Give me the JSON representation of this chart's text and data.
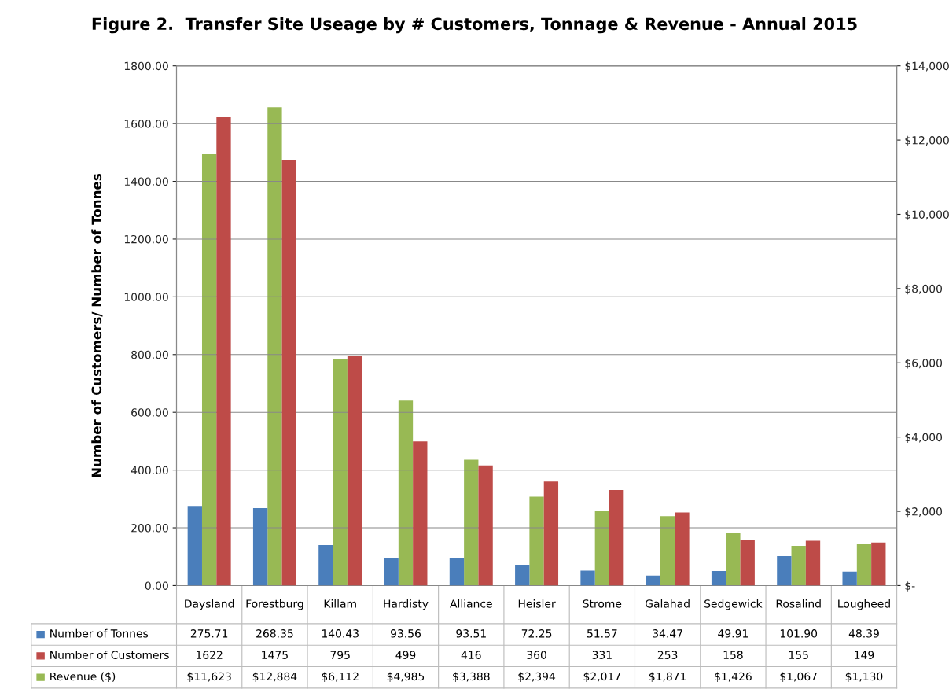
{
  "chart_data": {
    "type": "bar",
    "title": "Figure 2.  Transfer Site Useage by # Customers, Tonnage & Revenue - Annual 2015",
    "ylabel": "Number of Customers/ Number of Tonnes",
    "categories": [
      "Daysland",
      "Forestburg",
      "Killam",
      "Hardisty",
      "Alliance",
      "Heisler",
      "Strome",
      "Galahad",
      "Sedgewick",
      "Rosalind",
      "Lougheed"
    ],
    "series": [
      {
        "name": "Number of Tonnes",
        "color": "#4a7ebb",
        "values": [
          275.71,
          268.35,
          140.43,
          93.56,
          93.51,
          72.25,
          51.57,
          34.47,
          49.91,
          101.9,
          48.39
        ],
        "value_labels": [
          "275.71",
          "268.35",
          "140.43",
          "93.56",
          "93.51",
          "72.25",
          "51.57",
          "34.47",
          "49.91",
          "101.90",
          "48.39"
        ]
      },
      {
        "name": "Number of Customers",
        "color": "#be4b48",
        "values": [
          1622,
          1475,
          795,
          499,
          416,
          360,
          331,
          253,
          158,
          155,
          149
        ],
        "value_labels": [
          "1622",
          "1475",
          "795",
          "499",
          "416",
          "360",
          "331",
          "253",
          "158",
          "155",
          "149"
        ]
      },
      {
        "name": "Revenue ($)",
        "color": "#98b954",
        "axis": "y2",
        "values": [
          11623,
          12884,
          6112,
          4985,
          3388,
          2394,
          2017,
          1871,
          1426,
          1067,
          1130
        ],
        "value_labels": [
          "$11,623",
          "$12,884",
          "$6,112",
          "$4,985",
          "$3,388",
          "$2,394",
          "$2,017",
          "$1,871",
          "$1,426",
          "$1,067",
          "$1,130"
        ]
      }
    ],
    "ylim": [
      0,
      1800
    ],
    "yticks": [
      {
        "value": 0,
        "label": "0.00"
      },
      {
        "value": 200,
        "label": "200.00"
      },
      {
        "value": 400,
        "label": "400.00"
      },
      {
        "value": 600,
        "label": "600.00"
      },
      {
        "value": 800,
        "label": "800.00"
      },
      {
        "value": 1000,
        "label": "1000.00"
      },
      {
        "value": 1200,
        "label": "1200.00"
      },
      {
        "value": 1400,
        "label": "1400.00"
      },
      {
        "value": 1600,
        "label": "1600.00"
      },
      {
        "value": 1800,
        "label": "1800.00"
      }
    ],
    "y2lim": [
      0,
      14000
    ],
    "y2ticks": [
      {
        "value": 0,
        "label": "$-"
      },
      {
        "value": 2000,
        "label": "$2,000"
      },
      {
        "value": 4000,
        "label": "$4,000"
      },
      {
        "value": 6000,
        "label": "$6,000"
      },
      {
        "value": 8000,
        "label": "$8,000"
      },
      {
        "value": 10000,
        "label": "$10,000"
      },
      {
        "value": 12000,
        "label": "$12,000"
      },
      {
        "value": 14000,
        "label": "$14,000"
      }
    ],
    "grid": "y",
    "legend": "bottom left"
  }
}
